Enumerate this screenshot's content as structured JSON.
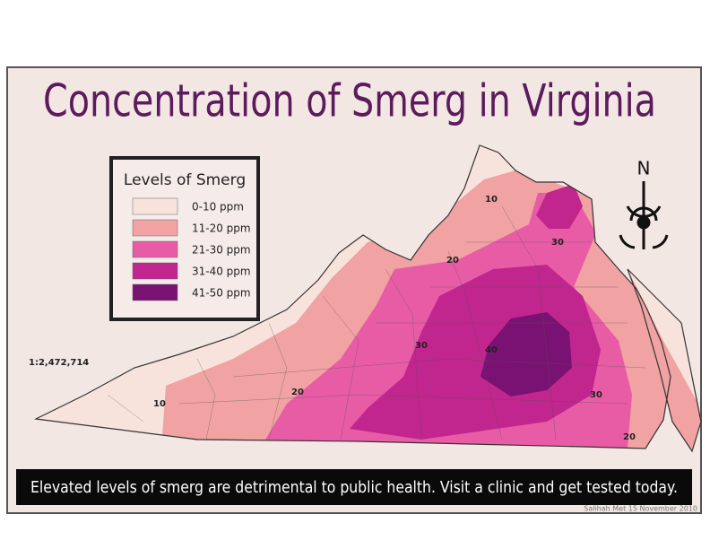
{
  "title": "Concentration of Smerg in Virginia",
  "legend": {
    "title": "Levels of Smerg",
    "items": [
      {
        "label": "0-10 ppm",
        "color": "#f8e3dc"
      },
      {
        "label": "11-20 ppm",
        "color": "#f1a2a3"
      },
      {
        "label": "21-30 ppm",
        "color": "#e85ca6"
      },
      {
        "label": "31-40 ppm",
        "color": "#c1258e"
      },
      {
        "label": "41-50 ppm",
        "color": "#791272"
      }
    ]
  },
  "scale": "1:2,472,714",
  "north": "N",
  "contour_labels": [
    "10",
    "10",
    "20",
    "20",
    "20",
    "30",
    "30",
    "30",
    "40"
  ],
  "banner": "Elevated levels of smerg are detrimental to public health. Visit a clinic and get tested today.",
  "credit": "Salihah Met 15 November 2010"
}
